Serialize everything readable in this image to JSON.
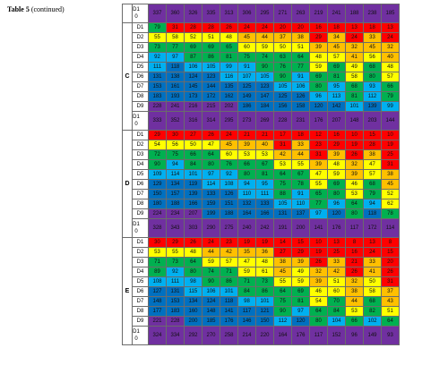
{
  "caption": {
    "title": "Table 5",
    "note": "(continued)"
  },
  "palette": {
    "red": "#ff0000",
    "orange": "#ffc000",
    "yellow": "#ffff00",
    "green": "#00b050",
    "blue": "#00b0f0",
    "navy": "#0070c0",
    "purple": "#7030a0"
  },
  "sections": [
    {
      "name": "",
      "rows": [
        {
          "label": "D10",
          "values": [
            337,
            360,
            326,
            335,
            313,
            306,
            295,
            271,
            263,
            219,
            241,
            188,
            238,
            185
          ]
        }
      ]
    },
    {
      "name": "C",
      "rows": [
        {
          "label": "D1",
          "values": [
            79,
            31,
            28,
            28,
            26,
            24,
            24,
            20,
            20,
            16,
            18,
            13,
            18,
            13
          ]
        },
        {
          "label": "D2",
          "values": [
            55,
            58,
            52,
            51,
            48,
            45,
            44,
            37,
            38,
            29,
            34,
            24,
            33,
            24
          ]
        },
        {
          "label": "D3",
          "values": [
            73,
            77,
            69,
            69,
            65,
            60,
            59,
            50,
            51,
            39,
            45,
            32,
            45,
            32
          ]
        },
        {
          "label": "D4",
          "values": [
            92,
            97,
            87,
            86,
            81,
            75,
            74,
            63,
            64,
            48,
            57,
            41,
            56,
            40
          ]
        },
        {
          "label": "D5",
          "values": [
            111,
            118,
            106,
            105,
            99,
            91,
            90,
            76,
            77,
            59,
            69,
            49,
            68,
            48
          ]
        },
        {
          "label": "D6",
          "values": [
            131,
            138,
            124,
            123,
            116,
            107,
            105,
            90,
            91,
            69,
            81,
            58,
            80,
            57
          ]
        },
        {
          "label": "D7",
          "values": [
            153,
            161,
            145,
            144,
            135,
            125,
            123,
            105,
            106,
            80,
            95,
            68,
            93,
            66
          ]
        },
        {
          "label": "D8",
          "values": [
            183,
            193,
            173,
            172,
            162,
            149,
            147,
            125,
            126,
            96,
            113,
            81,
            112,
            79
          ]
        },
        {
          "label": "D9",
          "values": [
            228,
            241,
            216,
            215,
            202,
            186,
            184,
            156,
            158,
            120,
            142,
            101,
            139,
            99
          ]
        },
        {
          "label": "D10",
          "values": [
            333,
            352,
            316,
            314,
            295,
            273,
            269,
            228,
            231,
            176,
            207,
            148,
            203,
            144
          ]
        }
      ]
    },
    {
      "name": "D",
      "rows": [
        {
          "label": "D1",
          "values": [
            29,
            30,
            27,
            26,
            24,
            21,
            21,
            17,
            18,
            12,
            16,
            10,
            15,
            10
          ]
        },
        {
          "label": "D2",
          "values": [
            54,
            56,
            50,
            47,
            45,
            39,
            40,
            31,
            33,
            23,
            29,
            19,
            28,
            19
          ]
        },
        {
          "label": "D3",
          "values": [
            72,
            75,
            66,
            64,
            60,
            53,
            53,
            42,
            44,
            31,
            39,
            26,
            38,
            25
          ]
        },
        {
          "label": "D4",
          "values": [
            90,
            94,
            84,
            80,
            76,
            66,
            67,
            53,
            55,
            39,
            48,
            32,
            47,
            31
          ]
        },
        {
          "label": "D5",
          "values": [
            109,
            114,
            101,
            97,
            92,
            80,
            81,
            64,
            67,
            47,
            59,
            39,
            57,
            38
          ]
        },
        {
          "label": "D6",
          "values": [
            129,
            134,
            119,
            114,
            108,
            94,
            95,
            75,
            78,
            55,
            69,
            46,
            68,
            45
          ]
        },
        {
          "label": "D7",
          "values": [
            150,
            157,
            139,
            133,
            126,
            110,
            111,
            88,
            91,
            65,
            80,
            53,
            79,
            52
          ]
        },
        {
          "label": "D8",
          "values": [
            180,
            188,
            166,
            159,
            151,
            132,
            133,
            105,
            110,
            77,
            96,
            64,
            94,
            62
          ]
        },
        {
          "label": "D9",
          "values": [
            224,
            234,
            207,
            199,
            188,
            164,
            166,
            131,
            137,
            97,
            120,
            80,
            118,
            78
          ]
        },
        {
          "label": "D10",
          "values": [
            328,
            343,
            303,
            290,
            275,
            240,
            242,
            191,
            200,
            141,
            176,
            117,
            172,
            114
          ]
        }
      ]
    },
    {
      "name": "E",
      "rows": [
        {
          "label": "D1",
          "values": [
            30,
            29,
            26,
            24,
            23,
            19,
            19,
            14,
            15,
            10,
            13,
            8,
            13,
            8
          ]
        },
        {
          "label": "D2",
          "values": [
            53,
            55,
            48,
            44,
            42,
            35,
            36,
            27,
            29,
            19,
            25,
            16,
            24,
            15
          ]
        },
        {
          "label": "D3",
          "values": [
            71,
            73,
            64,
            59,
            57,
            47,
            48,
            38,
            39,
            26,
            33,
            21,
            33,
            20
          ]
        },
        {
          "label": "D4",
          "values": [
            89,
            92,
            80,
            74,
            71,
            59,
            61,
            45,
            49,
            32,
            42,
            26,
            41,
            26
          ]
        },
        {
          "label": "D5",
          "values": [
            108,
            111,
            98,
            90,
            86,
            71,
            73,
            55,
            59,
            39,
            51,
            32,
            50,
            31
          ]
        },
        {
          "label": "D6",
          "values": [
            127,
            131,
            115,
            106,
            101,
            84,
            86,
            64,
            69,
            46,
            60,
            38,
            58,
            37
          ]
        },
        {
          "label": "D7",
          "values": [
            148,
            153,
            134,
            124,
            118,
            98,
            101,
            75,
            81,
            54,
            70,
            44,
            68,
            43
          ]
        },
        {
          "label": "D8",
          "values": [
            177,
            183,
            160,
            148,
            141,
            117,
            121,
            90,
            97,
            64,
            84,
            53,
            82,
            51
          ]
        },
        {
          "label": "D9",
          "values": [
            221,
            228,
            200,
            185,
            176,
            146,
            150,
            112,
            120,
            80,
            104,
            66,
            102,
            64
          ]
        },
        {
          "label": "D10",
          "values": [
            324,
            334,
            292,
            270,
            258,
            214,
            220,
            164,
            176,
            117,
            152,
            96,
            149,
            93
          ]
        }
      ]
    }
  ]
}
